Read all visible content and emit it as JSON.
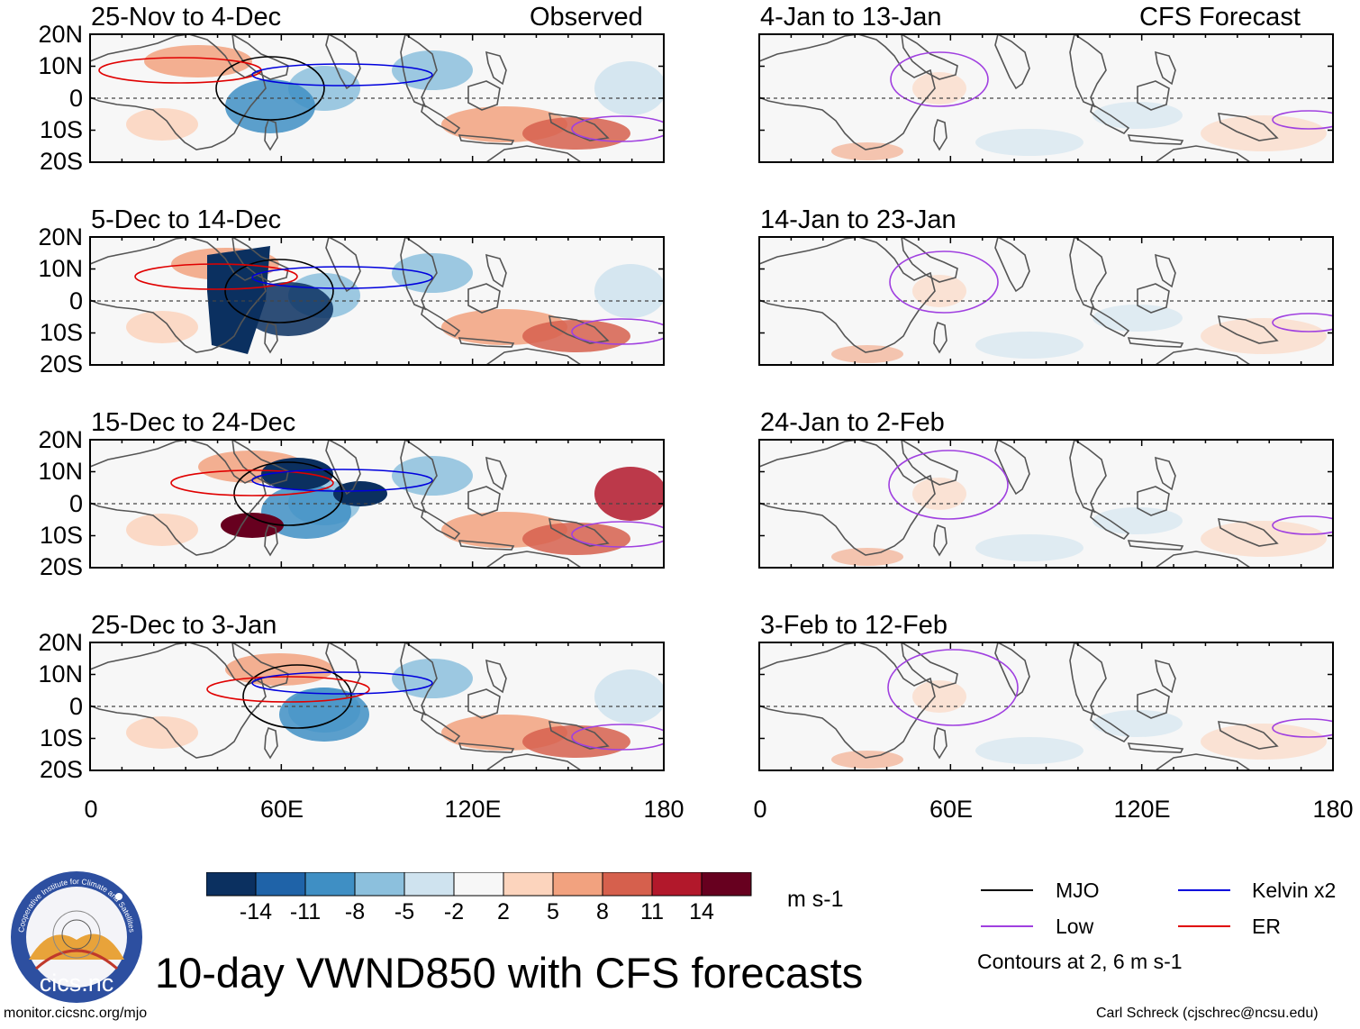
{
  "figure": {
    "title": "10-day VWND850 with CFS forecasts",
    "credit_left": "monitor.cicsnc.org/mjo",
    "credit_right": "Carl Schreck (cjschrec@ncsu.edu)"
  },
  "columns": {
    "left_label": "Observed",
    "right_label": "CFS Forecast"
  },
  "axes": {
    "lat_ticks": [
      "20N",
      "10N",
      "0",
      "10S",
      "20S"
    ],
    "lon_ticks": [
      "0",
      "60E",
      "120E",
      "180"
    ]
  },
  "panels": [
    {
      "period": "25-Nov to 4-Dec",
      "source": "Observed"
    },
    {
      "period": "5-Dec to 14-Dec",
      "source": "Observed"
    },
    {
      "period": "15-Dec to 24-Dec",
      "source": "Observed"
    },
    {
      "period": "25-Dec to 3-Jan",
      "source": "Observed"
    },
    {
      "period": "4-Jan to 13-Jan",
      "source": "CFS Forecast"
    },
    {
      "period": "14-Jan to 23-Jan",
      "source": "CFS Forecast"
    },
    {
      "period": "24-Jan to 2-Feb",
      "source": "CFS Forecast"
    },
    {
      "period": "3-Feb to 12-Feb",
      "source": "CFS Forecast"
    }
  ],
  "colorbar": {
    "labels": [
      "-14",
      "-11",
      "-8",
      "-5",
      "-2",
      "2",
      "5",
      "8",
      "11",
      "14"
    ],
    "colors": [
      "#0b3060",
      "#1f63a8",
      "#3f8fc4",
      "#8cc0dd",
      "#cfe3ef",
      "#f7f7f7",
      "#fcd4bd",
      "#f2a27f",
      "#d6604d",
      "#b2182b",
      "#67001f"
    ],
    "units": "m s-1"
  },
  "legend": {
    "items": [
      {
        "label": "MJO",
        "color": "#000000"
      },
      {
        "label": "Kelvin x2",
        "color": "#0000dd"
      },
      {
        "label": "Low",
        "color": "#a040e0"
      },
      {
        "label": "ER",
        "color": "#e00000"
      }
    ],
    "note": "Contours at 2, 6 m s-1"
  },
  "logo": {
    "text": "cics.nc",
    "ring_text": "Cooperative Institute for Climate and Satellites"
  }
}
